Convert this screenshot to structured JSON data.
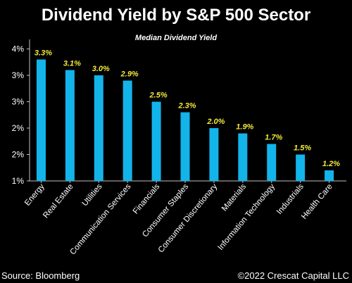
{
  "header": {
    "title": "Dividend Yield by S&P 500 Sector",
    "subtitle": "Median Dividend Yield"
  },
  "footer": {
    "source": "Source: Bloomberg",
    "copyright": "©2022 Crescat Capital LLC"
  },
  "colors": {
    "bar": "#12b4ea",
    "data_label": "#f2e93a",
    "axis": "#bfbfbf",
    "background": "#000000"
  },
  "chart_data": {
    "type": "bar",
    "title": "Dividend Yield by S&P 500 Sector",
    "subtitle": "Median Dividend Yield",
    "categories": [
      "Energy",
      "Real Estate",
      "Utilities",
      "Communication Services",
      "Financials",
      "Consumer Staples",
      "Consumer Discretionary",
      "Materials",
      "Information Technology",
      "Industrials",
      "Health Care"
    ],
    "values": [
      3.3,
      3.1,
      3.0,
      2.9,
      2.5,
      2.3,
      2.0,
      1.9,
      1.7,
      1.5,
      1.2
    ],
    "data_labels": [
      "3.3%",
      "3.1%",
      "3.0%",
      "2.9%",
      "2.5%",
      "2.3%",
      "2.0%",
      "1.9%",
      "1.7%",
      "1.5%",
      "1.2%"
    ],
    "ylim": [
      1.0,
      3.6
    ],
    "y_ticks": [
      1.0,
      1.5,
      2.0,
      2.5,
      3.0,
      3.5
    ],
    "y_tick_labels": [
      "1%",
      "2%",
      "2%",
      "3%",
      "3%",
      "4%"
    ],
    "grid": false,
    "legend": "none"
  }
}
